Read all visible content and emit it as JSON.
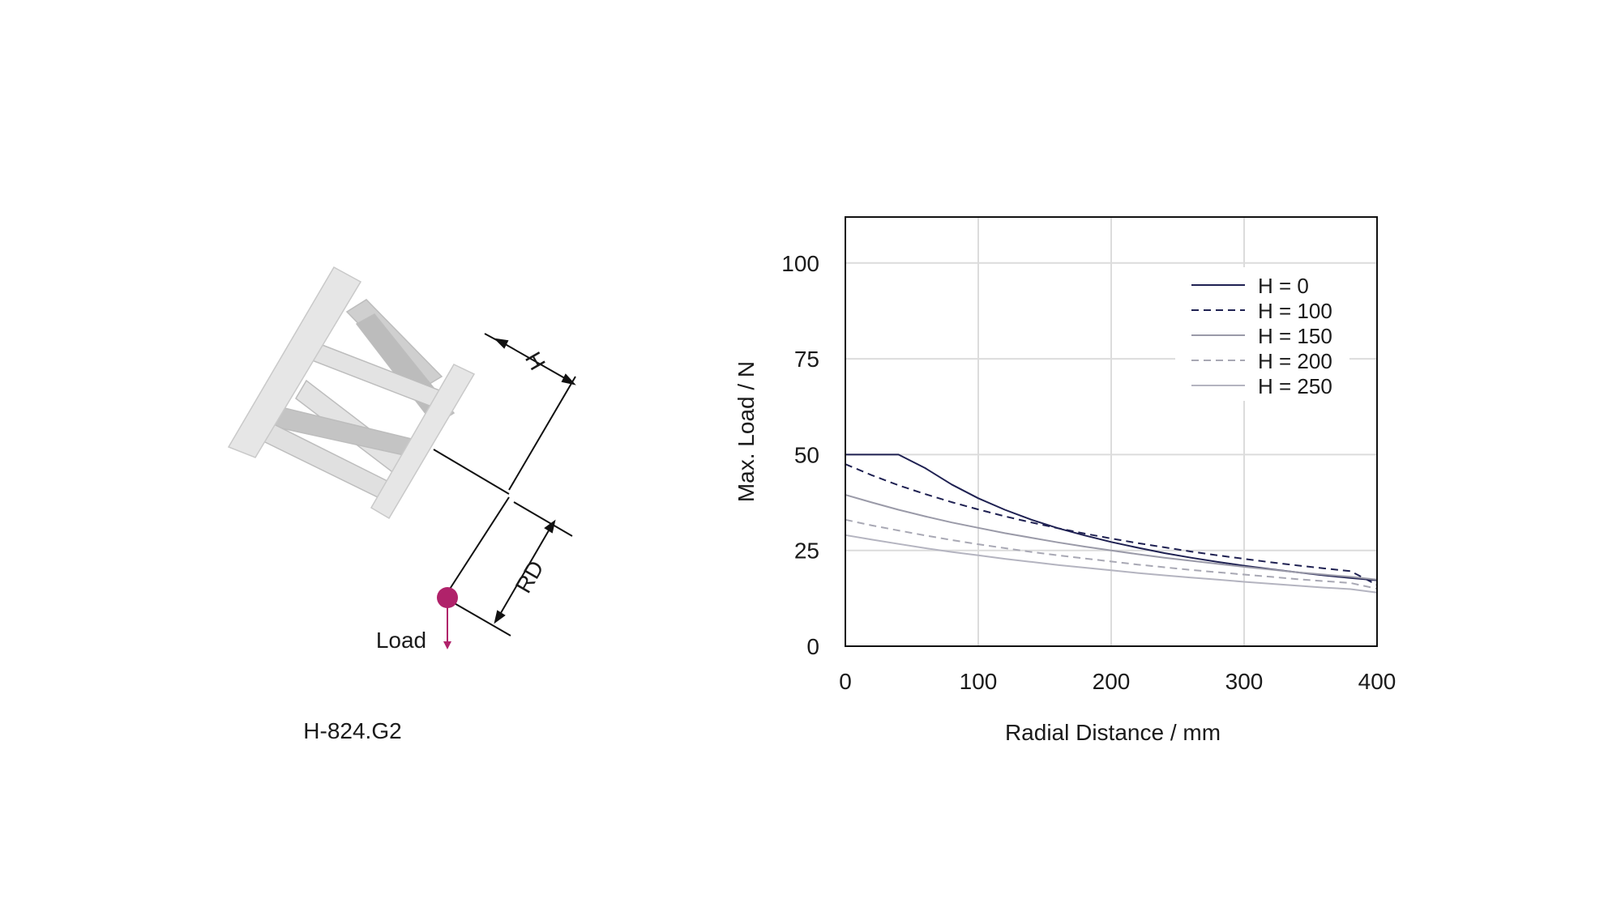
{
  "colors": {
    "load_marker": "#b0226a",
    "hexapod_light": "#e6e6e6",
    "hexapod_mid": "#c8c8c8",
    "hexapod_edge": "#bdbdbd",
    "grid": "#dcdcdc",
    "axes": "#111111"
  },
  "diagram": {
    "model_label": "H-824.G2",
    "load_label": "Load",
    "height_label": "H",
    "radial_label": "RD"
  },
  "chart_data": {
    "type": "line",
    "title": "",
    "xlabel": "Radial Distance / mm",
    "ylabel": "Max. Load / N",
    "xlim": [
      0,
      400
    ],
    "ylim": [
      0,
      112
    ],
    "xticks": [
      0,
      100,
      200,
      300,
      400
    ],
    "yticks": [
      0,
      25,
      50,
      75,
      100
    ],
    "grid": true,
    "legend_position": "top-right",
    "x": [
      0,
      20,
      40,
      60,
      80,
      100,
      120,
      140,
      160,
      180,
      200,
      220,
      240,
      260,
      280,
      300,
      320,
      340,
      360,
      380,
      400
    ],
    "series": [
      {
        "name": "H = 0",
        "color": "#1f2152",
        "dash": "solid",
        "values": [
          50,
          50,
          50,
          46.5,
          42.2,
          38.6,
          35.6,
          33.0,
          30.8,
          28.9,
          27.2,
          25.7,
          24.3,
          23.1,
          22.0,
          21.0,
          20.1,
          19.3,
          18.5,
          17.8,
          17.2
        ]
      },
      {
        "name": "H = 100",
        "color": "#1f2152",
        "dash": "dashed",
        "values": [
          47.5,
          44.6,
          42.0,
          39.7,
          37.6,
          35.7,
          33.9,
          32.3,
          30.8,
          29.4,
          28.1,
          26.9,
          25.8,
          24.7,
          23.7,
          22.8,
          21.9,
          21.1,
          20.3,
          19.6,
          16.0
        ]
      },
      {
        "name": "H = 150",
        "color": "#9a9aa8",
        "dash": "solid",
        "values": [
          39.5,
          37.5,
          35.6,
          33.9,
          32.3,
          30.9,
          29.5,
          28.3,
          27.1,
          26.0,
          25.0,
          24.0,
          23.1,
          22.3,
          21.5,
          20.7,
          20.0,
          19.3,
          18.7,
          18.1,
          17.4
        ]
      },
      {
        "name": "H = 200",
        "color": "#a8a8b4",
        "dash": "dashed",
        "values": [
          33.0,
          31.5,
          30.2,
          28.9,
          27.7,
          26.6,
          25.6,
          24.6,
          23.7,
          22.9,
          22.1,
          21.3,
          20.6,
          19.9,
          19.3,
          18.7,
          18.1,
          17.5,
          17.0,
          16.5,
          15.0
        ]
      },
      {
        "name": "H = 250",
        "color": "#b4b4c0",
        "dash": "solid",
        "values": [
          29.0,
          27.8,
          26.7,
          25.6,
          24.6,
          23.7,
          22.8,
          22.0,
          21.2,
          20.5,
          19.8,
          19.1,
          18.5,
          17.9,
          17.4,
          16.8,
          16.3,
          15.8,
          15.3,
          14.9,
          14.0
        ]
      }
    ]
  }
}
